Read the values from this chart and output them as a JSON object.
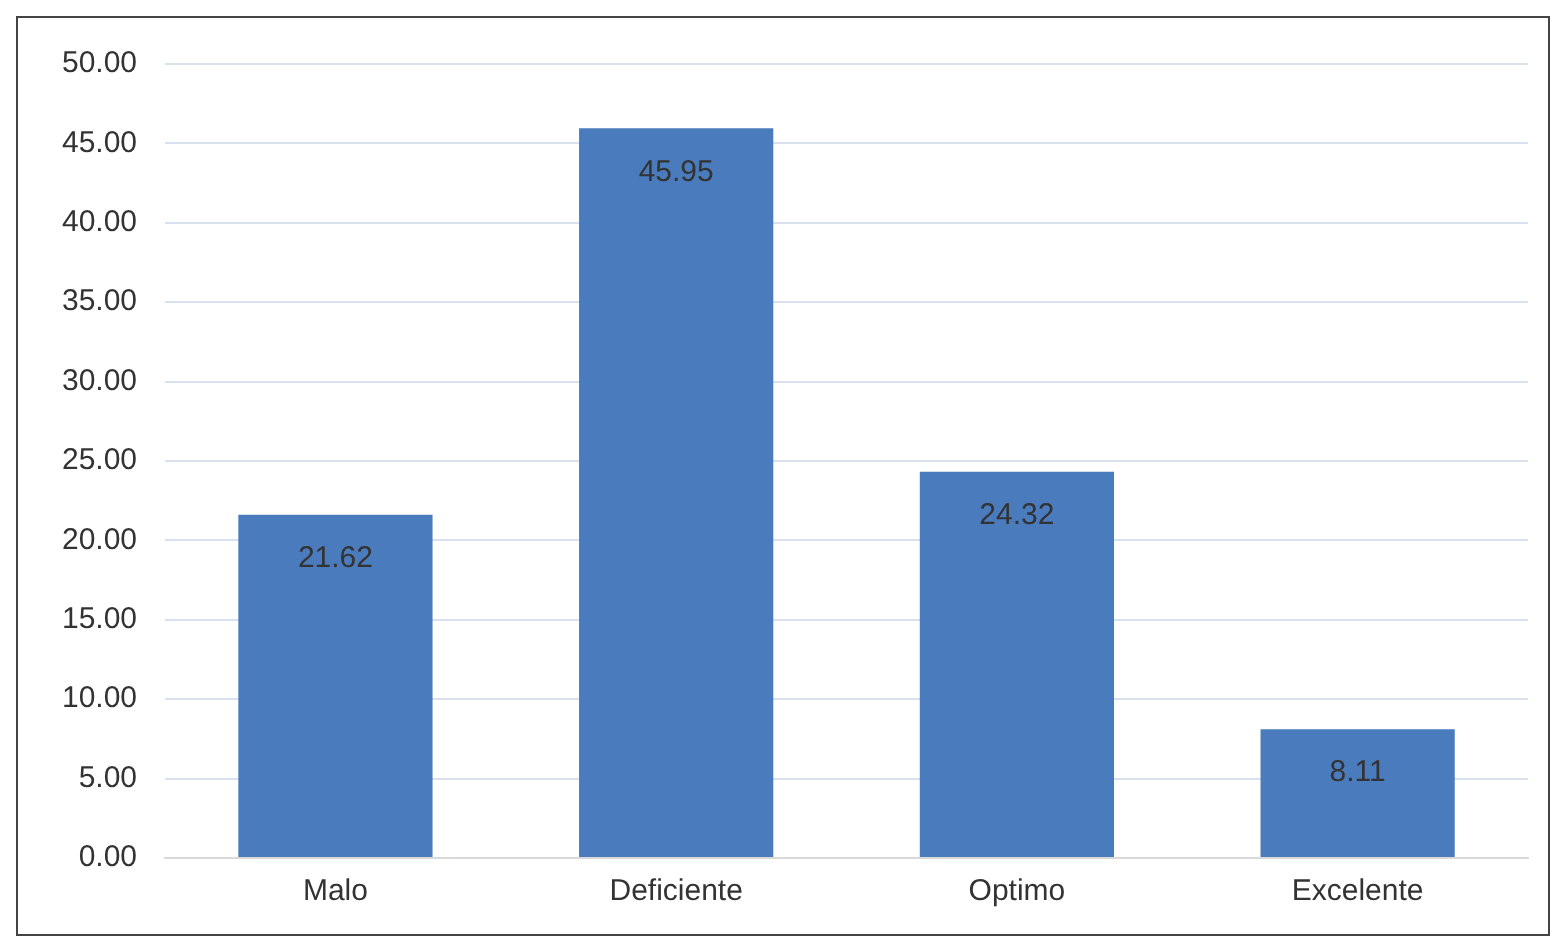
{
  "chart_data": {
    "type": "bar",
    "categories": [
      "Malo",
      "Deficiente",
      "Optimo",
      "Excelente"
    ],
    "values": [
      21.62,
      45.95,
      24.32,
      8.11
    ],
    "color": "#4a7bbd",
    "ylim": [
      0,
      50
    ],
    "yticks": [
      {
        "value": 0,
        "label": "0.00"
      },
      {
        "value": 5,
        "label": "5.00"
      },
      {
        "value": 10,
        "label": "10.00"
      },
      {
        "value": 15,
        "label": "15.00"
      },
      {
        "value": 20,
        "label": "20.00"
      },
      {
        "value": 25,
        "label": "25.00"
      },
      {
        "value": 30,
        "label": "30.00"
      },
      {
        "value": 35,
        "label": "35.00"
      },
      {
        "value": 40,
        "label": "40.00"
      },
      {
        "value": 45,
        "label": "45.00"
      },
      {
        "value": 50,
        "label": "50.00"
      }
    ],
    "grid": "y",
    "data_labels": true
  }
}
